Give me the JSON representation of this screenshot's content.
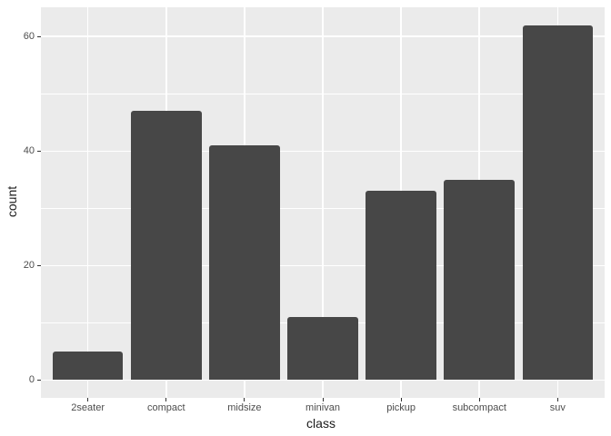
{
  "chart_data": {
    "type": "bar",
    "title": "",
    "xlabel": "class",
    "ylabel": "count",
    "categories": [
      "2seater",
      "compact",
      "midsize",
      "minivan",
      "pickup",
      "subcompact",
      "suv"
    ],
    "values": [
      5,
      47,
      41,
      11,
      33,
      35,
      62
    ],
    "y_major_ticks": [
      0,
      20,
      40,
      60
    ],
    "y_minor_ticks": [
      10,
      30,
      50
    ],
    "ylim": [
      -3.1,
      65.1
    ],
    "bar_width_fraction": 0.9,
    "discrete_x_expand": 0.6,
    "grid": "on",
    "legend_position": "none",
    "theme": {
      "figure_background": "#ffffff",
      "panel_background": "#ebebeb",
      "grid_color": "#ffffff",
      "bar_fill": "#474747",
      "tick_label_color": "#4d4d4d",
      "tick_mark_color": "#333333",
      "axis_title_color": "#1a1a1a"
    }
  }
}
